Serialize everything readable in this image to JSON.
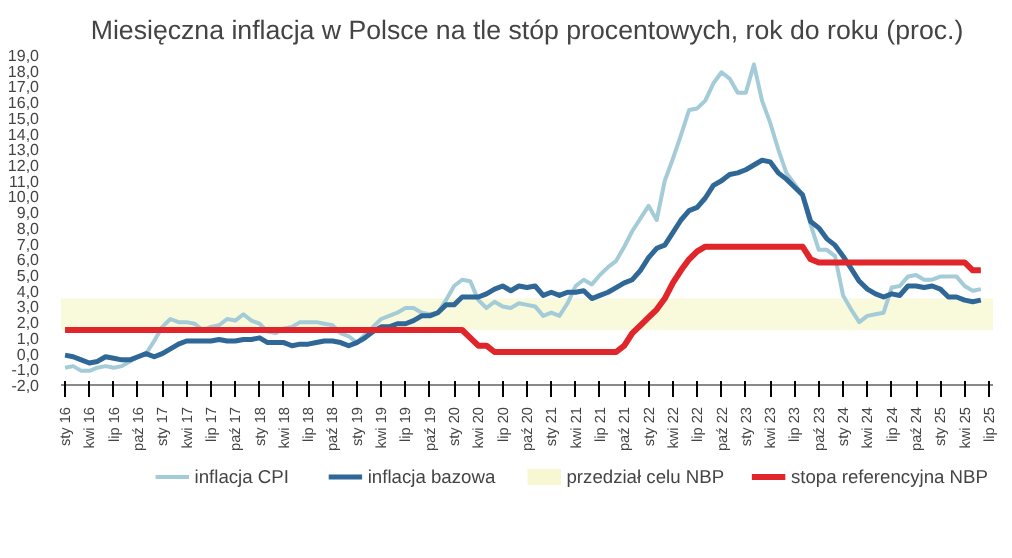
{
  "chart_data": {
    "type": "line",
    "title": "Miesięczna inflacja w Polsce na tle stóp procentowych, rok do roku (proc.)",
    "categories": [
      "sty 16",
      null,
      null,
      "kwi 16",
      null,
      null,
      "lip 16",
      null,
      null,
      "paź 16",
      null,
      null,
      "sty 17",
      null,
      null,
      "kwi 17",
      null,
      null,
      "lip 17",
      null,
      null,
      "paź 17",
      null,
      null,
      "sty 18",
      null,
      null,
      "kwi 18",
      null,
      null,
      "lip 18",
      null,
      null,
      "paź 18",
      null,
      null,
      "sty 19",
      null,
      null,
      "kwi 19",
      null,
      null,
      "lip 19",
      null,
      null,
      "paź 19",
      null,
      null,
      "sty 20",
      null,
      null,
      "kwi 20",
      null,
      null,
      "lip 20",
      null,
      null,
      "paź 20",
      null,
      null,
      "sty 21",
      null,
      null,
      "kwi 21",
      null,
      null,
      "lip 21",
      null,
      null,
      "paź 21",
      null,
      null,
      "sty 22",
      null,
      null,
      "kwi 22",
      null,
      null,
      "lip 22",
      null,
      null,
      "paź 22",
      null,
      null,
      "sty 23",
      null,
      null,
      "kwi 23",
      null,
      null,
      "lip 23",
      null,
      null,
      "paź 23",
      null,
      null,
      "sty 24",
      null,
      null,
      "kwi 24",
      null,
      null,
      "lip 24",
      null,
      null,
      "paź 24",
      null,
      null,
      "sty 25",
      null,
      null,
      "kwi 25",
      null,
      null,
      "lip 25"
    ],
    "series": [
      {
        "name": "inflacja CPI",
        "color": "#a3cbd8",
        "values": [
          -0.9,
          -0.8,
          -1.1,
          -1.1,
          -0.9,
          -0.8,
          -0.9,
          -0.8,
          -0.5,
          -0.2,
          0.0,
          0.8,
          1.7,
          2.2,
          2.0,
          2.0,
          1.9,
          1.5,
          1.7,
          1.8,
          2.2,
          2.1,
          2.5,
          2.1,
          1.9,
          1.4,
          1.3,
          1.6,
          1.7,
          2.0,
          2.0,
          2.0,
          1.9,
          1.8,
          1.3,
          1.1,
          0.7,
          1.2,
          1.7,
          2.2,
          2.4,
          2.6,
          2.9,
          2.9,
          2.6,
          2.5,
          2.6,
          3.4,
          4.3,
          4.7,
          4.6,
          3.4,
          2.9,
          3.3,
          3.0,
          2.9,
          3.2,
          3.1,
          3.0,
          2.4,
          2.6,
          2.4,
          3.2,
          4.3,
          4.7,
          4.4,
          5.0,
          5.5,
          5.9,
          6.8,
          7.8,
          8.6,
          9.4,
          8.5,
          11.0,
          12.4,
          13.9,
          15.5,
          15.6,
          16.1,
          17.2,
          17.9,
          17.5,
          16.6,
          16.6,
          18.4,
          16.1,
          14.7,
          13.0,
          11.5,
          10.8,
          10.1,
          8.2,
          6.6,
          6.6,
          6.2,
          3.7,
          2.8,
          2.0,
          2.4,
          2.5,
          2.6,
          4.2,
          4.3,
          4.9,
          5.0,
          4.7,
          4.7,
          4.9,
          4.9,
          4.9,
          4.3,
          4.0,
          4.1,
          null
        ]
      },
      {
        "name": "inflacja bazowa",
        "color": "#2f6796",
        "values": [
          -0.1,
          -0.2,
          -0.4,
          -0.6,
          -0.5,
          -0.2,
          -0.3,
          -0.4,
          -0.4,
          -0.2,
          0.0,
          -0.2,
          0.0,
          0.3,
          0.6,
          0.8,
          0.8,
          0.8,
          0.8,
          0.9,
          0.8,
          0.8,
          0.9,
          0.9,
          1.0,
          0.7,
          0.7,
          0.7,
          0.5,
          0.6,
          0.6,
          0.7,
          0.8,
          0.8,
          0.7,
          0.5,
          0.7,
          1.0,
          1.4,
          1.7,
          1.7,
          1.9,
          1.9,
          2.1,
          2.4,
          2.4,
          2.6,
          3.1,
          3.1,
          3.6,
          3.6,
          3.6,
          3.8,
          4.1,
          4.3,
          4.0,
          4.3,
          4.2,
          4.3,
          3.7,
          3.9,
          3.7,
          3.9,
          3.9,
          4.0,
          3.5,
          3.7,
          3.9,
          4.2,
          4.5,
          4.7,
          5.3,
          6.1,
          6.7,
          6.9,
          7.7,
          8.5,
          9.1,
          9.3,
          9.9,
          10.7,
          11.0,
          11.4,
          11.5,
          11.7,
          12.0,
          12.3,
          12.2,
          11.5,
          11.1,
          10.6,
          10.1,
          8.4,
          8.0,
          7.3,
          6.9,
          6.2,
          5.4,
          4.6,
          4.1,
          3.8,
          3.6,
          3.8,
          3.7,
          4.3,
          4.3,
          4.2,
          4.3,
          4.1,
          3.6,
          3.6,
          3.4,
          3.3,
          3.4,
          null
        ]
      },
      {
        "name": "stopa referencyjna NBP",
        "color": "#e0252b",
        "values": [
          1.5,
          1.5,
          1.5,
          1.5,
          1.5,
          1.5,
          1.5,
          1.5,
          1.5,
          1.5,
          1.5,
          1.5,
          1.5,
          1.5,
          1.5,
          1.5,
          1.5,
          1.5,
          1.5,
          1.5,
          1.5,
          1.5,
          1.5,
          1.5,
          1.5,
          1.5,
          1.5,
          1.5,
          1.5,
          1.5,
          1.5,
          1.5,
          1.5,
          1.5,
          1.5,
          1.5,
          1.5,
          1.5,
          1.5,
          1.5,
          1.5,
          1.5,
          1.5,
          1.5,
          1.5,
          1.5,
          1.5,
          1.5,
          1.5,
          1.5,
          1.0,
          0.5,
          0.5,
          0.1,
          0.1,
          0.1,
          0.1,
          0.1,
          0.1,
          0.1,
          0.1,
          0.1,
          0.1,
          0.1,
          0.1,
          0.1,
          0.1,
          0.1,
          0.1,
          0.5,
          1.3,
          1.8,
          2.3,
          2.8,
          3.5,
          4.5,
          5.3,
          6.0,
          6.5,
          6.8,
          6.8,
          6.8,
          6.8,
          6.8,
          6.8,
          6.8,
          6.8,
          6.8,
          6.8,
          6.8,
          6.8,
          6.8,
          6.0,
          5.8,
          5.8,
          5.8,
          5.8,
          5.8,
          5.8,
          5.8,
          5.8,
          5.8,
          5.8,
          5.8,
          5.8,
          5.8,
          5.8,
          5.8,
          5.8,
          5.8,
          5.8,
          5.8,
          5.3,
          5.3,
          null
        ]
      }
    ],
    "bands": [
      {
        "axis": "y",
        "from": 1.5,
        "to": 3.5,
        "label": "przedział celu NBP",
        "color": "#f7f7d2"
      }
    ],
    "ylim": [
      -2,
      19
    ],
    "yticks": [
      {
        "value": -2,
        "label": "-2,0"
      },
      {
        "value": -1,
        "label": "-1,0"
      },
      {
        "value": 0,
        "label": "0,0"
      },
      {
        "value": 1,
        "label": "1,0"
      },
      {
        "value": 2,
        "label": "2,0"
      },
      {
        "value": 3,
        "label": "3,0"
      },
      {
        "value": 4,
        "label": "4,0"
      },
      {
        "value": 5,
        "label": "5,0"
      },
      {
        "value": 6,
        "label": "6,0"
      },
      {
        "value": 7,
        "label": "7,0"
      },
      {
        "value": 8,
        "label": "8,0"
      },
      {
        "value": 9,
        "label": "9,0"
      },
      {
        "value": 10,
        "label": "10,0"
      },
      {
        "value": 11,
        "label": "11,0"
      },
      {
        "value": 12,
        "label": "12,0"
      },
      {
        "value": 13,
        "label": "13,0"
      },
      {
        "value": 14,
        "label": "14,0"
      },
      {
        "value": 15,
        "label": "15,0"
      },
      {
        "value": 16,
        "label": "16,0"
      },
      {
        "value": 17,
        "label": "17,0"
      },
      {
        "value": 18,
        "label": "18,0"
      },
      {
        "value": 19,
        "label": "19,0"
      }
    ],
    "grid": false,
    "legend": "bottom",
    "line_style": "solid"
  }
}
